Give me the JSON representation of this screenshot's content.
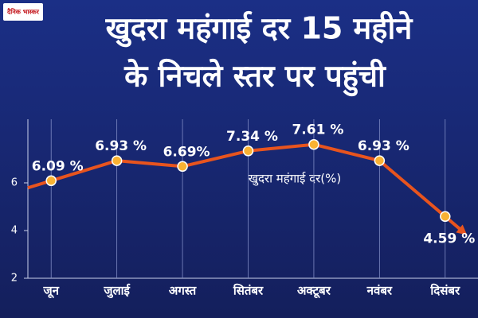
{
  "brand": "दैनिक भास्कर",
  "chart_data": {
    "type": "line",
    "title": [
      "खुदरा महंगाई दर 15 महीने",
      "के निचले स्तर पर पहुंची"
    ],
    "annotation": "खुदरा महंगाई दर(%)",
    "categories": [
      "जून",
      "जुलाई",
      "अगस्त",
      "सितंबर",
      "अक्टूबर",
      "नवंबर",
      "दिसंबर"
    ],
    "values": [
      6.09,
      6.93,
      6.69,
      7.34,
      7.61,
      6.93,
      4.59
    ],
    "value_labels": [
      "6.09 %",
      "6.93 %",
      "6.69%",
      "7.34 %",
      "7.61 %",
      "6.93 %",
      "4.59 %"
    ],
    "color": "#e8541e",
    "marker_color": "#f9b233",
    "ylim": [
      2,
      8
    ],
    "yticks": [
      2,
      4,
      6
    ]
  }
}
